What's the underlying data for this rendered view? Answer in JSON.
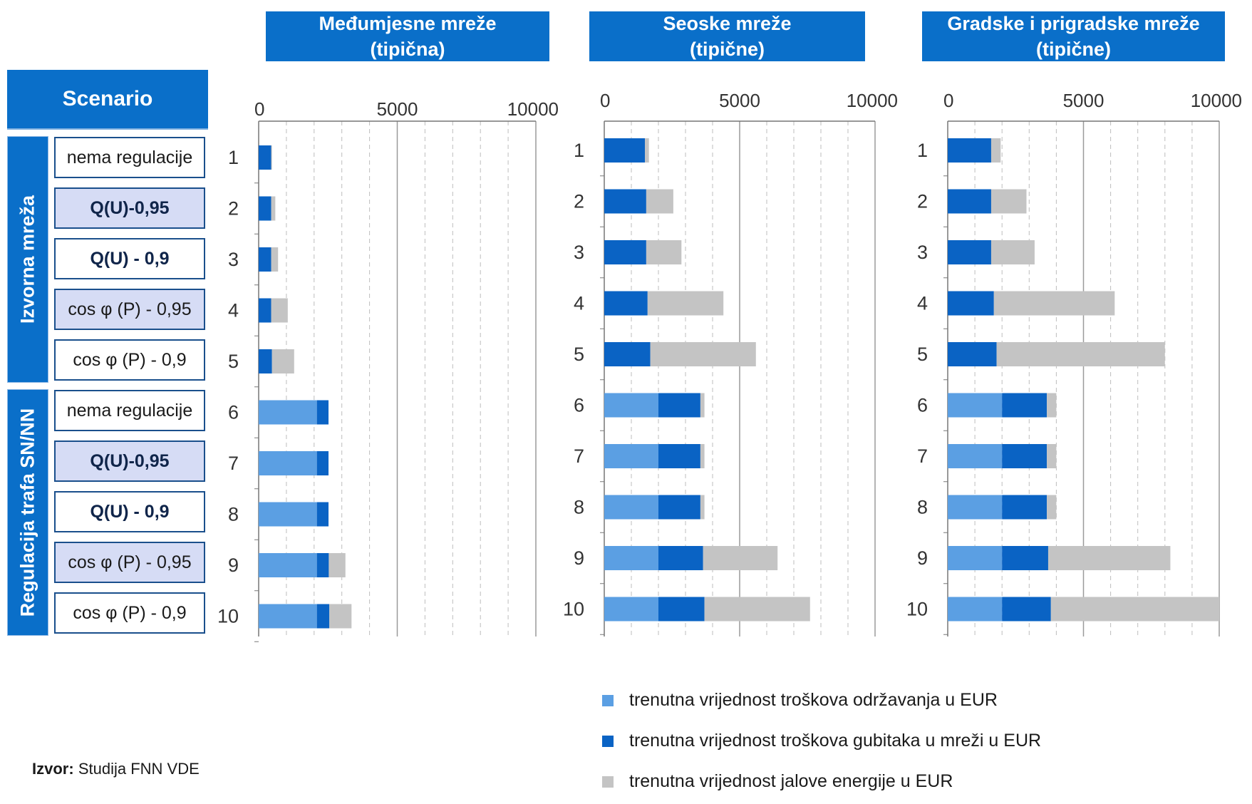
{
  "scenario_header": "Scenario",
  "groups": [
    "Izvorna mreža",
    "Regulacija trafa SN/NN"
  ],
  "scenarios": [
    {
      "label": "nema regulacije",
      "style": "plain"
    },
    {
      "label": "Q(U)-0,95",
      "style": "bold-shaded"
    },
    {
      "label": "Q(U) - 0,9",
      "style": "bold"
    },
    {
      "label": "cos φ  (P) - 0,95",
      "style": "shaded"
    },
    {
      "label": "cos φ  (P) - 0,9",
      "style": "plain"
    },
    {
      "label": "nema regulacije",
      "style": "plain"
    },
    {
      "label": "Q(U)-0,95",
      "style": "bold-shaded"
    },
    {
      "label": "Q(U) - 0,9",
      "style": "bold"
    },
    {
      "label": "cos φ  (P) - 0,95",
      "style": "shaded"
    },
    {
      "label": "cos φ  (P) - 0,9",
      "style": "plain"
    }
  ],
  "colors": {
    "header": "#0a6fc9",
    "maintenance": "#5b9fe3",
    "losses": "#0a63c4",
    "reactive": "#c4c4c4"
  },
  "legend": [
    {
      "label": "trenutna vrijednost troškova održavanja u EUR",
      "color": "#5b9fe3"
    },
    {
      "label": "trenutna vrijednost troškova gubitaka u mreži u EUR",
      "color": "#0a63c4"
    },
    {
      "label": "trenutna vrijednost jalove energije u EUR",
      "color": "#c4c4c4"
    }
  ],
  "source": {
    "label": "Izvor:",
    "text": "Studija FNN VDE"
  },
  "chart_data": [
    {
      "type": "bar",
      "stacked": true,
      "orientation": "horizontal",
      "title": [
        "Međumjesne mreže",
        "(tipična)"
      ],
      "categories": [
        "1",
        "2",
        "3",
        "4",
        "5",
        "6",
        "7",
        "8",
        "9",
        "10"
      ],
      "xlim": [
        0,
        10000
      ],
      "ticks": [
        "0",
        "5000",
        "10000"
      ],
      "grid": true,
      "series": [
        {
          "name": "trenutna vrijednost troškova održavanja u EUR",
          "values": [
            0,
            0,
            0,
            0,
            0,
            2100,
            2100,
            2100,
            2100,
            2100
          ]
        },
        {
          "name": "trenutna vrijednost troškova gubitaka u mreži u EUR",
          "values": [
            450,
            450,
            450,
            450,
            480,
            420,
            420,
            420,
            430,
            450
          ]
        },
        {
          "name": "trenutna vrijednost jalove energije u EUR",
          "values": [
            30,
            150,
            250,
            600,
            800,
            0,
            0,
            0,
            600,
            800
          ]
        }
      ]
    },
    {
      "type": "bar",
      "stacked": true,
      "orientation": "horizontal",
      "title": [
        "Seoske mreže",
        "(tipične)"
      ],
      "categories": [
        "1",
        "2",
        "3",
        "4",
        "5",
        "6",
        "7",
        "8",
        "9",
        "10"
      ],
      "xlim": [
        0,
        10000
      ],
      "ticks": [
        "0",
        "5000",
        "10000"
      ],
      "grid": true,
      "series": [
        {
          "name": "trenutna vrijednost troškova održavanja u EUR",
          "values": [
            0,
            0,
            0,
            0,
            0,
            2000,
            2000,
            2000,
            2000,
            2000
          ]
        },
        {
          "name": "trenutna vrijednost troškova gubitaka u mreži u EUR",
          "values": [
            1500,
            1550,
            1550,
            1600,
            1700,
            1550,
            1550,
            1550,
            1650,
            1700
          ]
        },
        {
          "name": "trenutna vrijednost jalove energije u EUR",
          "values": [
            150,
            1000,
            1300,
            2800,
            3900,
            150,
            150,
            150,
            2750,
            3900
          ]
        }
      ]
    },
    {
      "type": "bar",
      "stacked": true,
      "orientation": "horizontal",
      "title": [
        "Gradske i prigradske mreže",
        "(tipične)"
      ],
      "categories": [
        "1",
        "2",
        "3",
        "4",
        "5",
        "6",
        "7",
        "8",
        "9",
        "10"
      ],
      "xlim": [
        0,
        10000
      ],
      "ticks": [
        "0",
        "5000",
        "10000"
      ],
      "grid": true,
      "series": [
        {
          "name": "trenutna vrijednost troškova održavanja u EUR",
          "values": [
            0,
            0,
            0,
            0,
            0,
            2000,
            2000,
            2000,
            2000,
            2000
          ]
        },
        {
          "name": "trenutna vrijednost troškova gubitaka u mreži u EUR",
          "values": [
            1600,
            1600,
            1600,
            1700,
            1800,
            1650,
            1650,
            1650,
            1700,
            1800
          ]
        },
        {
          "name": "trenutna vrijednost jalove energije u EUR",
          "values": [
            350,
            1300,
            1600,
            4450,
            6200,
            350,
            350,
            350,
            4500,
            6200
          ]
        }
      ]
    }
  ]
}
